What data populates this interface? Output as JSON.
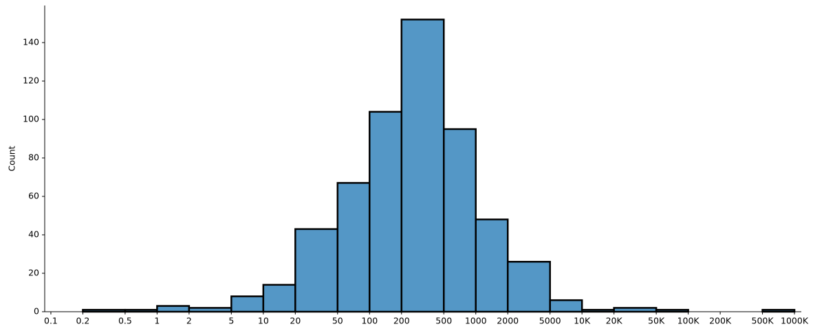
{
  "chart_data": {
    "type": "histogram",
    "y_label": "Count",
    "bins": [
      0.2,
      0.5,
      1,
      2,
      5,
      10,
      20,
      50,
      100,
      200,
      500,
      1000,
      2000,
      5000,
      10000,
      20000,
      50000,
      100000,
      200000,
      500000,
      1000000
    ],
    "values": [
      1,
      1,
      3,
      2,
      8,
      14,
      43,
      67,
      104,
      152,
      95,
      48,
      26,
      6,
      1,
      2,
      1,
      0,
      0,
      1
    ],
    "color": "#5497c6",
    "edge_color": "#000000",
    "x_log": true,
    "xlim": [
      0.0875,
      1160000
    ],
    "ylim": [
      0,
      159.3
    ],
    "xticks": [
      0.1,
      0.2,
      0.5,
      1,
      2,
      5,
      10,
      20,
      50,
      100,
      200,
      500,
      1000,
      2000,
      5000,
      {
        "value": 10000,
        "label": "10K"
      },
      {
        "value": 20000,
        "label": "20K"
      },
      {
        "value": 50000,
        "label": "50K"
      },
      {
        "value": 100000,
        "label": "100K"
      },
      {
        "value": 200000,
        "label": "200K"
      },
      {
        "value": 500000,
        "label": "500K"
      },
      {
        "value": 1000000,
        "label": "1000K"
      }
    ],
    "yticks": [
      0,
      20,
      40,
      60,
      80,
      100,
      120,
      140
    ]
  }
}
